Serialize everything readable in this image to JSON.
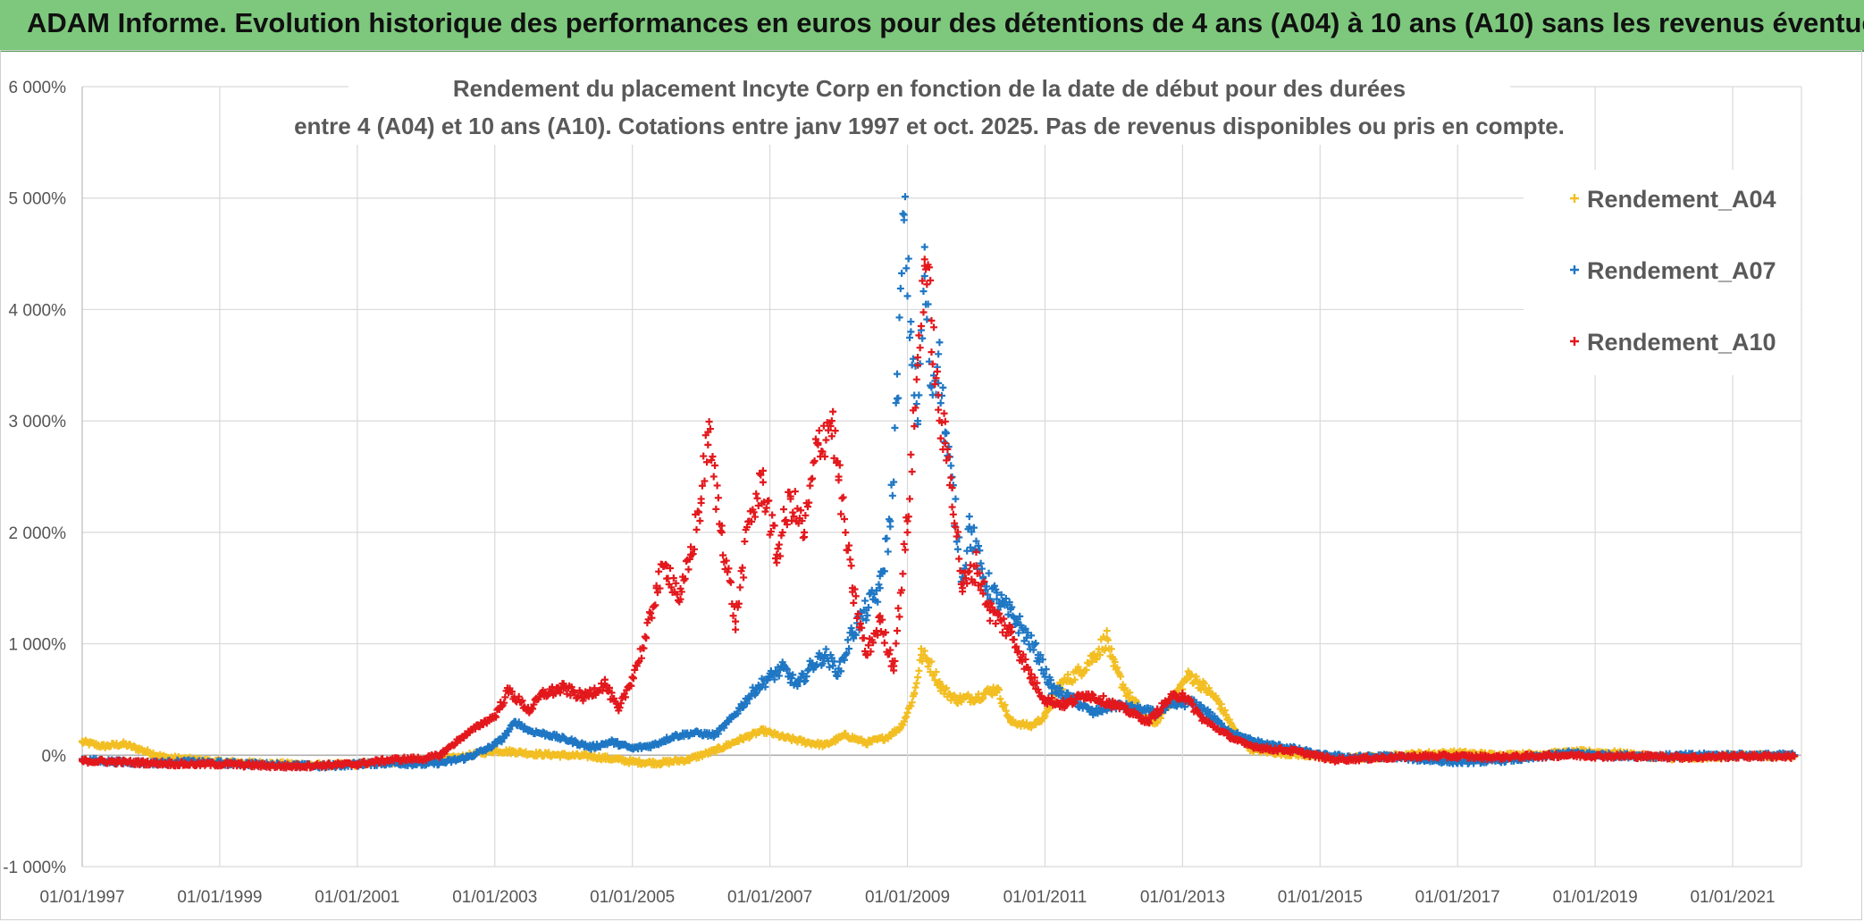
{
  "banner": {
    "title": "ADAM Informe. Evolution historique des performances en euros pour des détentions de 4 ans (A04) à 10 ans (A10) sans les revenus éventuels"
  },
  "chart_data": {
    "type": "scatter",
    "title_line1": "Rendement du placement Incyte Corp en fonction de la date de début pour des durées",
    "title_line2": "entre 4 (A04) et 10 ans (A10). Cotations entre janv 1997 et oct. 2025. Pas de revenus disponibles ou pris en compte.",
    "ylabel": "",
    "xlabel": "",
    "ylim": [
      -1000,
      6000
    ],
    "xlim": [
      1997.0,
      2022.0
    ],
    "grid": true,
    "legend_position": "top-right",
    "y_ticks": [
      {
        "value": 6000,
        "label": "6 000%"
      },
      {
        "value": 5000,
        "label": "5 000%"
      },
      {
        "value": 4000,
        "label": "4 000%"
      },
      {
        "value": 3000,
        "label": "3 000%"
      },
      {
        "value": 2000,
        "label": "2 000%"
      },
      {
        "value": 1000,
        "label": "1 000%"
      },
      {
        "value": 0,
        "label": "0%"
      },
      {
        "value": -1000,
        "label": "-1 000%"
      }
    ],
    "x_ticks": [
      {
        "value": 1997,
        "label": "01/01/1997"
      },
      {
        "value": 1999,
        "label": "01/01/1999"
      },
      {
        "value": 2001,
        "label": "01/01/2001"
      },
      {
        "value": 2003,
        "label": "01/01/2003"
      },
      {
        "value": 2005,
        "label": "01/01/2005"
      },
      {
        "value": 2007,
        "label": "01/01/2007"
      },
      {
        "value": 2009,
        "label": "01/01/2009"
      },
      {
        "value": 2011,
        "label": "01/01/2011"
      },
      {
        "value": 2013,
        "label": "01/01/2013"
      },
      {
        "value": 2015,
        "label": "01/01/2015"
      },
      {
        "value": 2017,
        "label": "01/01/2017"
      },
      {
        "value": 2019,
        "label": "01/01/2019"
      },
      {
        "value": 2021,
        "label": "01/01/2021"
      }
    ],
    "series": [
      {
        "name": "Rendement_A04",
        "color": "#f2be22",
        "points": [
          [
            1997.0,
            120
          ],
          [
            1997.3,
            80
          ],
          [
            1997.6,
            100
          ],
          [
            1997.9,
            40
          ],
          [
            1998.2,
            -20
          ],
          [
            1998.6,
            -40
          ],
          [
            1999.0,
            -60
          ],
          [
            1999.5,
            -70
          ],
          [
            2000.0,
            -80
          ],
          [
            2000.5,
            -90
          ],
          [
            2001.0,
            -80
          ],
          [
            2001.5,
            -60
          ],
          [
            2002.0,
            -50
          ],
          [
            2002.5,
            -20
          ],
          [
            2002.8,
            20
          ],
          [
            2003.0,
            40
          ],
          [
            2003.3,
            30
          ],
          [
            2003.6,
            10
          ],
          [
            2004.0,
            0
          ],
          [
            2004.4,
            -10
          ],
          [
            2004.8,
            -40
          ],
          [
            2005.0,
            -60
          ],
          [
            2005.4,
            -70
          ],
          [
            2005.8,
            -40
          ],
          [
            2006.2,
            40
          ],
          [
            2006.6,
            150
          ],
          [
            2006.9,
            220
          ],
          [
            2007.2,
            160
          ],
          [
            2007.5,
            120
          ],
          [
            2007.8,
            90
          ],
          [
            2008.1,
            180
          ],
          [
            2008.4,
            110
          ],
          [
            2008.7,
            160
          ],
          [
            2008.9,
            250
          ],
          [
            2009.0,
            380
          ],
          [
            2009.1,
            550
          ],
          [
            2009.2,
            900
          ],
          [
            2009.3,
            850
          ],
          [
            2009.5,
            600
          ],
          [
            2009.7,
            500
          ],
          [
            2010.0,
            520
          ],
          [
            2010.3,
            600
          ],
          [
            2010.5,
            300
          ],
          [
            2010.8,
            260
          ],
          [
            2011.0,
            350
          ],
          [
            2011.2,
            620
          ],
          [
            2011.5,
            750
          ],
          [
            2011.7,
            880
          ],
          [
            2011.9,
            1050
          ],
          [
            2012.0,
            800
          ],
          [
            2012.2,
            550
          ],
          [
            2012.4,
            400
          ],
          [
            2012.6,
            280
          ],
          [
            2012.9,
            550
          ],
          [
            2013.1,
            720
          ],
          [
            2013.3,
            620
          ],
          [
            2013.5,
            500
          ],
          [
            2013.8,
            180
          ],
          [
            2014.0,
            50
          ],
          [
            2014.4,
            20
          ],
          [
            2014.8,
            0
          ],
          [
            2015.2,
            -30
          ],
          [
            2015.8,
            -20
          ],
          [
            2016.4,
            10
          ],
          [
            2017.0,
            20
          ],
          [
            2017.6,
            0
          ],
          [
            2018.2,
            10
          ],
          [
            2018.8,
            30
          ],
          [
            2019.3,
            20
          ],
          [
            2019.8,
            -10
          ],
          [
            2020.3,
            -30
          ],
          [
            2020.8,
            -10
          ],
          [
            2021.3,
            0
          ],
          [
            2021.9,
            -10
          ]
        ]
      },
      {
        "name": "Rendement_A07",
        "color": "#1f77c4",
        "points": [
          [
            1997.0,
            -40
          ],
          [
            1997.5,
            -60
          ],
          [
            1998.0,
            -70
          ],
          [
            1998.5,
            -60
          ],
          [
            1999.0,
            -70
          ],
          [
            1999.5,
            -80
          ],
          [
            2000.0,
            -90
          ],
          [
            2000.5,
            -100
          ],
          [
            2001.0,
            -80
          ],
          [
            2001.5,
            -70
          ],
          [
            2002.0,
            -80
          ],
          [
            2002.3,
            -60
          ],
          [
            2002.6,
            -20
          ],
          [
            2002.9,
            60
          ],
          [
            2003.1,
            140
          ],
          [
            2003.3,
            300
          ],
          [
            2003.5,
            220
          ],
          [
            2003.8,
            180
          ],
          [
            2004.1,
            130
          ],
          [
            2004.4,
            70
          ],
          [
            2004.7,
            120
          ],
          [
            2005.0,
            60
          ],
          [
            2005.3,
            90
          ],
          [
            2005.6,
            170
          ],
          [
            2005.9,
            200
          ],
          [
            2006.2,
            180
          ],
          [
            2006.4,
            300
          ],
          [
            2006.6,
            450
          ],
          [
            2006.8,
            600
          ],
          [
            2007.0,
            700
          ],
          [
            2007.2,
            780
          ],
          [
            2007.4,
            620
          ],
          [
            2007.6,
            800
          ],
          [
            2007.8,
            900
          ],
          [
            2008.0,
            750
          ],
          [
            2008.2,
            1100
          ],
          [
            2008.4,
            1300
          ],
          [
            2008.6,
            1500
          ],
          [
            2008.75,
            2100
          ],
          [
            2008.85,
            3200
          ],
          [
            2008.95,
            4850
          ],
          [
            2009.05,
            3800
          ],
          [
            2009.15,
            3000
          ],
          [
            2009.25,
            4300
          ],
          [
            2009.35,
            3300
          ],
          [
            2009.45,
            3600
          ],
          [
            2009.55,
            2900
          ],
          [
            2009.65,
            2400
          ],
          [
            2009.8,
            1600
          ],
          [
            2009.9,
            2050
          ],
          [
            2010.1,
            1600
          ],
          [
            2010.3,
            1400
          ],
          [
            2010.6,
            1200
          ],
          [
            2010.9,
            900
          ],
          [
            2011.1,
            600
          ],
          [
            2011.4,
            500
          ],
          [
            2011.7,
            380
          ],
          [
            2012.0,
            450
          ],
          [
            2012.3,
            420
          ],
          [
            2012.6,
            380
          ],
          [
            2012.9,
            450
          ],
          [
            2013.1,
            480
          ],
          [
            2013.3,
            420
          ],
          [
            2013.6,
            250
          ],
          [
            2013.9,
            150
          ],
          [
            2014.2,
            100
          ],
          [
            2014.6,
            60
          ],
          [
            2015.0,
            0
          ],
          [
            2015.5,
            -20
          ],
          [
            2016.0,
            -10
          ],
          [
            2016.5,
            -40
          ],
          [
            2017.0,
            -60
          ],
          [
            2017.5,
            -50
          ],
          [
            2018.0,
            -30
          ],
          [
            2018.6,
            20
          ],
          [
            2019.2,
            0
          ],
          [
            2019.8,
            -10
          ],
          [
            2020.5,
            0
          ],
          [
            2021.2,
            0
          ],
          [
            2021.9,
            0
          ]
        ]
      },
      {
        "name": "Rendement_A10",
        "color": "#e3181c",
        "points": [
          [
            1997.0,
            -50
          ],
          [
            1997.5,
            -60
          ],
          [
            1998.0,
            -70
          ],
          [
            1998.5,
            -80
          ],
          [
            1999.0,
            -80
          ],
          [
            1999.5,
            -90
          ],
          [
            2000.0,
            -100
          ],
          [
            2000.5,
            -90
          ],
          [
            2001.0,
            -80
          ],
          [
            2001.5,
            -40
          ],
          [
            2002.0,
            -30
          ],
          [
            2002.2,
            0
          ],
          [
            2002.5,
            150
          ],
          [
            2002.8,
            280
          ],
          [
            2003.0,
            350
          ],
          [
            2003.2,
            580
          ],
          [
            2003.5,
            400
          ],
          [
            2003.7,
            550
          ],
          [
            2004.0,
            600
          ],
          [
            2004.3,
            520
          ],
          [
            2004.6,
            640
          ],
          [
            2004.8,
            400
          ],
          [
            2005.0,
            700
          ],
          [
            2005.2,
            1050
          ],
          [
            2005.35,
            1500
          ],
          [
            2005.5,
            1700
          ],
          [
            2005.7,
            1400
          ],
          [
            2005.85,
            1800
          ],
          [
            2006.0,
            2300
          ],
          [
            2006.1,
            2900
          ],
          [
            2006.3,
            2000
          ],
          [
            2006.5,
            1200
          ],
          [
            2006.7,
            2100
          ],
          [
            2006.9,
            2450
          ],
          [
            2007.1,
            1800
          ],
          [
            2007.3,
            2300
          ],
          [
            2007.5,
            2000
          ],
          [
            2007.7,
            2800
          ],
          [
            2007.9,
            3000
          ],
          [
            2008.0,
            2500
          ],
          [
            2008.2,
            1500
          ],
          [
            2008.4,
            900
          ],
          [
            2008.6,
            1200
          ],
          [
            2008.8,
            800
          ],
          [
            2009.0,
            2100
          ],
          [
            2009.15,
            3500
          ],
          [
            2009.25,
            4450
          ],
          [
            2009.35,
            3900
          ],
          [
            2009.45,
            3100
          ],
          [
            2009.55,
            2800
          ],
          [
            2009.65,
            2400
          ],
          [
            2009.8,
            1500
          ],
          [
            2010.0,
            1700
          ],
          [
            2010.2,
            1300
          ],
          [
            2010.5,
            1100
          ],
          [
            2010.8,
            700
          ],
          [
            2011.0,
            500
          ],
          [
            2011.3,
            450
          ],
          [
            2011.6,
            550
          ],
          [
            2011.9,
            480
          ],
          [
            2012.2,
            400
          ],
          [
            2012.5,
            300
          ],
          [
            2012.8,
            500
          ],
          [
            2013.0,
            550
          ],
          [
            2013.3,
            320
          ],
          [
            2013.6,
            200
          ],
          [
            2013.9,
            100
          ],
          [
            2014.2,
            60
          ],
          [
            2014.6,
            40
          ],
          [
            2014.9,
            0
          ],
          [
            2015.2,
            -40
          ],
          [
            2015.6,
            -30
          ],
          [
            2016.0,
            -20
          ],
          [
            2016.5,
            -10
          ],
          [
            2017.0,
            -10
          ],
          [
            2017.5,
            -20
          ],
          [
            2018.0,
            -10
          ],
          [
            2018.6,
            0
          ],
          [
            2019.2,
            -10
          ],
          [
            2019.8,
            -10
          ],
          [
            2020.4,
            -20
          ],
          [
            2021.0,
            -10
          ],
          [
            2021.9,
            -10
          ]
        ]
      }
    ]
  }
}
